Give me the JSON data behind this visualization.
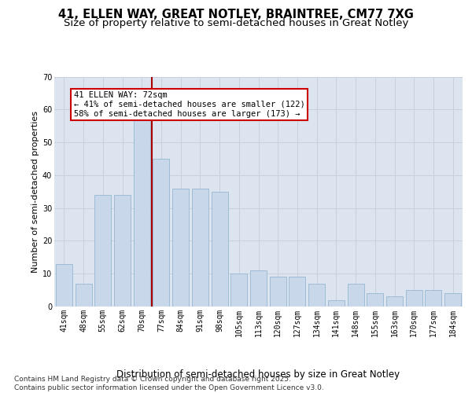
{
  "title1": "41, ELLEN WAY, GREAT NOTLEY, BRAINTREE, CM77 7XG",
  "title2": "Size of property relative to semi-detached houses in Great Notley",
  "xlabel": "Distribution of semi-detached houses by size in Great Notley",
  "ylabel": "Number of semi-detached properties",
  "categories": [
    "41sqm",
    "48sqm",
    "55sqm",
    "62sqm",
    "70sqm",
    "77sqm",
    "84sqm",
    "91sqm",
    "98sqm",
    "105sqm",
    "113sqm",
    "120sqm",
    "127sqm",
    "134sqm",
    "141sqm",
    "148sqm",
    "155sqm",
    "163sqm",
    "170sqm",
    "177sqm",
    "184sqm"
  ],
  "values": [
    13,
    7,
    34,
    34,
    58,
    45,
    36,
    36,
    35,
    10,
    11,
    9,
    9,
    7,
    2,
    7,
    4,
    3,
    5,
    5,
    4
  ],
  "bar_color": "#c8d8ea",
  "bar_edge_color": "#8ab0cc",
  "grid_color": "#c8d0dc",
  "background_color": "#dce4f0",
  "vline_x_index": 4,
  "vline_color": "#aa0000",
  "annotation_text": "41 ELLEN WAY: 72sqm\n← 41% of semi-detached houses are smaller (122)\n58% of semi-detached houses are larger (173) →",
  "annotation_box_facecolor": "#ffffff",
  "annotation_box_edgecolor": "#cc0000",
  "ylim": [
    0,
    70
  ],
  "yticks": [
    0,
    10,
    20,
    30,
    40,
    50,
    60,
    70
  ],
  "footnote": "Contains HM Land Registry data © Crown copyright and database right 2025.\nContains public sector information licensed under the Open Government Licence v3.0.",
  "title1_fontsize": 10.5,
  "title2_fontsize": 9.5,
  "xlabel_fontsize": 8.5,
  "ylabel_fontsize": 8,
  "tick_fontsize": 7,
  "annot_fontsize": 7.5,
  "footnote_fontsize": 6.5
}
